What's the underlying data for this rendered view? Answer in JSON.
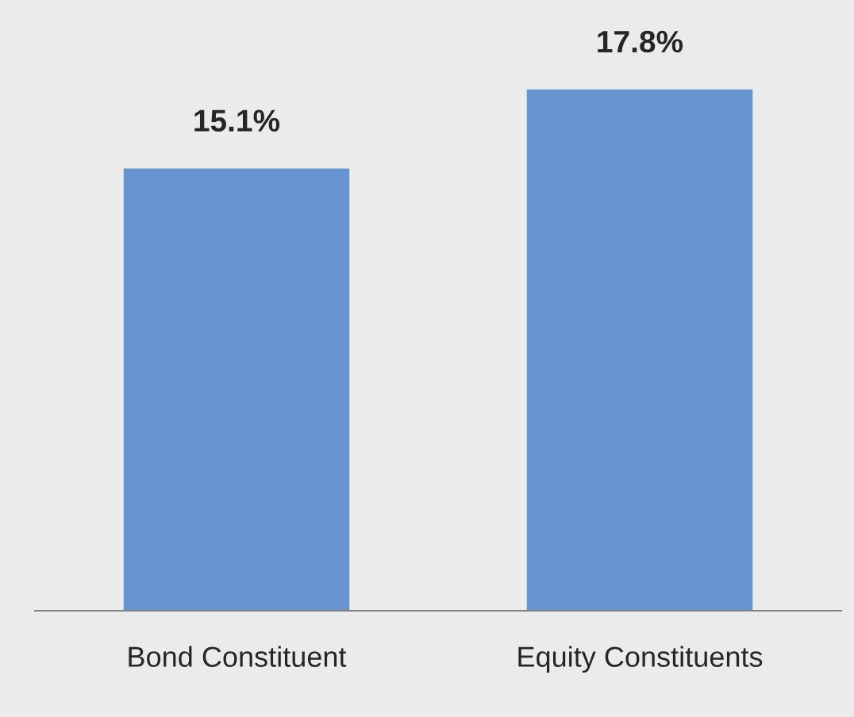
{
  "chart_data": {
    "type": "bar",
    "categories": [
      "Bond Constituent",
      "Equity Constituents"
    ],
    "values": [
      15.1,
      17.8
    ],
    "value_labels": [
      "15.1%",
      "17.8%"
    ],
    "color": "#6594cf",
    "tick_labels": "x",
    "grid": false,
    "legend": false
  }
}
